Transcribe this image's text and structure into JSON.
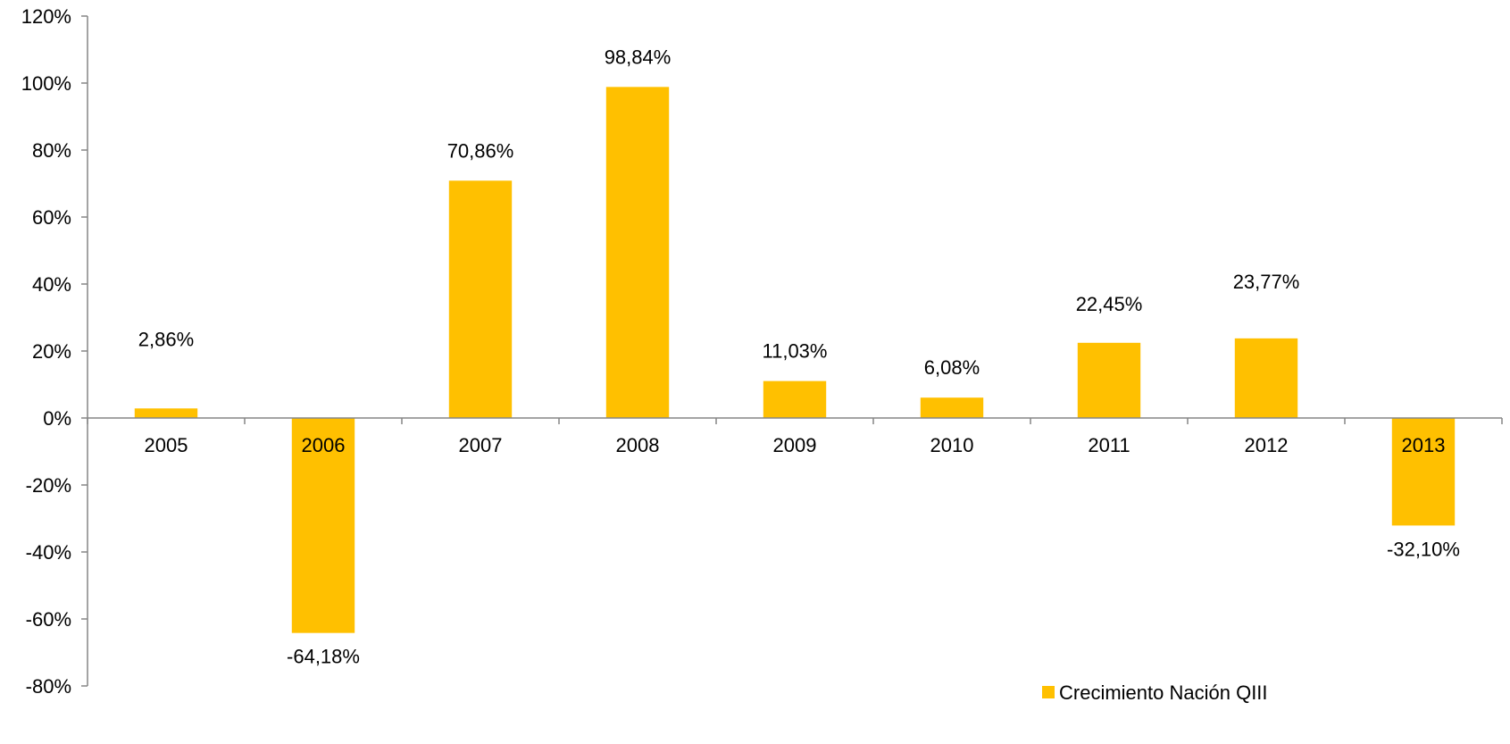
{
  "chart_data": {
    "type": "bar",
    "categories": [
      "2005",
      "2006",
      "2007",
      "2008",
      "2009",
      "2010",
      "2011",
      "2012",
      "2013"
    ],
    "series": [
      {
        "name": "Crecimiento Nación QIII",
        "values": [
          2.86,
          -64.18,
          70.86,
          98.84,
          11.03,
          6.08,
          22.45,
          23.77,
          -32.1
        ],
        "labels": [
          "2,86%",
          "-64,18%",
          "70,86%",
          "98,84%",
          "11,03%",
          "6,08%",
          "22,45%",
          "23,77%",
          "-32,10%"
        ],
        "color": "#FFC000"
      }
    ],
    "ylim": [
      -80,
      120
    ],
    "yticks": [
      120,
      100,
      80,
      60,
      40,
      20,
      0,
      -20,
      -40,
      -60,
      -80
    ],
    "ytick_labels": [
      "120%",
      "100%",
      "80%",
      "60%",
      "40%",
      "20%",
      "0%",
      "-20%",
      "-40%",
      "-60%",
      "-80%"
    ],
    "grid": false,
    "legend": {
      "position": "bottom-right",
      "entries": [
        "Crecimiento Nación QIII"
      ]
    },
    "colors": {
      "bar": "#FFC000",
      "axis": "#868686",
      "text": "#000000"
    }
  }
}
